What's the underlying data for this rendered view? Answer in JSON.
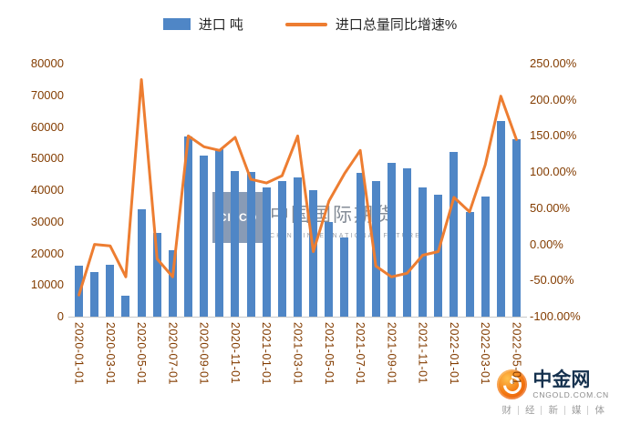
{
  "page": {
    "background": "#ffffff"
  },
  "legend": {
    "bars_label": "进口 吨",
    "line_label": "进口总量同比增速%"
  },
  "colors": {
    "bar": "#4f86c6",
    "line": "#ed7d31",
    "axis_text": "#833c00",
    "legend_text": "#262626"
  },
  "chart_data": {
    "type": "bar",
    "combo": "bar+line",
    "title": "",
    "grid": false,
    "legend_position": "top",
    "categories": [
      "2020-01-01",
      "2020-02-01",
      "2020-03-01",
      "2020-04-01",
      "2020-05-01",
      "2020-06-01",
      "2020-07-01",
      "2020-08-01",
      "2020-09-01",
      "2020-10-01",
      "2020-11-01",
      "2020-12-01",
      "2021-01-01",
      "2021-02-01",
      "2021-03-01",
      "2021-04-01",
      "2021-05-01",
      "2021-06-01",
      "2021-07-01",
      "2021-08-01",
      "2021-09-01",
      "2021-10-01",
      "2021-11-01",
      "2021-12-01",
      "2022-01-01",
      "2022-02-01",
      "2022-03-01",
      "2022-04-01",
      "2022-05-01"
    ],
    "x_tick_step": 2,
    "series": [
      {
        "name": "进口 吨",
        "type": "bar",
        "axis": "left",
        "color": "#4f86c6",
        "values": [
          16000,
          14000,
          16500,
          6500,
          34000,
          26500,
          21000,
          57000,
          51000,
          53000,
          46000,
          45800,
          41000,
          43000,
          44000,
          40000,
          30000,
          25000,
          45500,
          43000,
          48500,
          47000,
          41000,
          38500,
          52000,
          33000,
          38000,
          62000,
          56000
        ]
      },
      {
        "name": "进口总量同比增速%",
        "type": "line",
        "axis": "right",
        "color": "#ed7d31",
        "values": [
          -70,
          0,
          -2,
          -45,
          228,
          -20,
          -45,
          150,
          135,
          130,
          148,
          90,
          85,
          95,
          150,
          -10,
          60,
          98,
          130,
          -30,
          -45,
          -40,
          -15,
          -10,
          65,
          45,
          110,
          205,
          145
        ]
      }
    ],
    "y_left": {
      "min": 0,
      "max": 80000,
      "ticks": [
        "80000",
        "70000",
        "60000",
        "50000",
        "40000",
        "30000",
        "20000",
        "10000",
        "0"
      ]
    },
    "y_right": {
      "min": -100,
      "max": 250,
      "ticks": [
        "250.00%",
        "200.00%",
        "150.00%",
        "100.00%",
        "50.00%",
        "0.00%",
        "-50.00%",
        "-100.00%"
      ]
    }
  },
  "watermark": {
    "logo_text": "CIFCO",
    "title": "中国国际期货",
    "subtitle": "CHINA INTERNATIONAL FUTURES"
  },
  "brand": {
    "name": "中金网",
    "domain": "CNGOLD.COM.CN",
    "logo_icon": "swirl-icon",
    "tagline_chars": [
      "财",
      "经",
      "新",
      "媒",
      "体"
    ]
  }
}
